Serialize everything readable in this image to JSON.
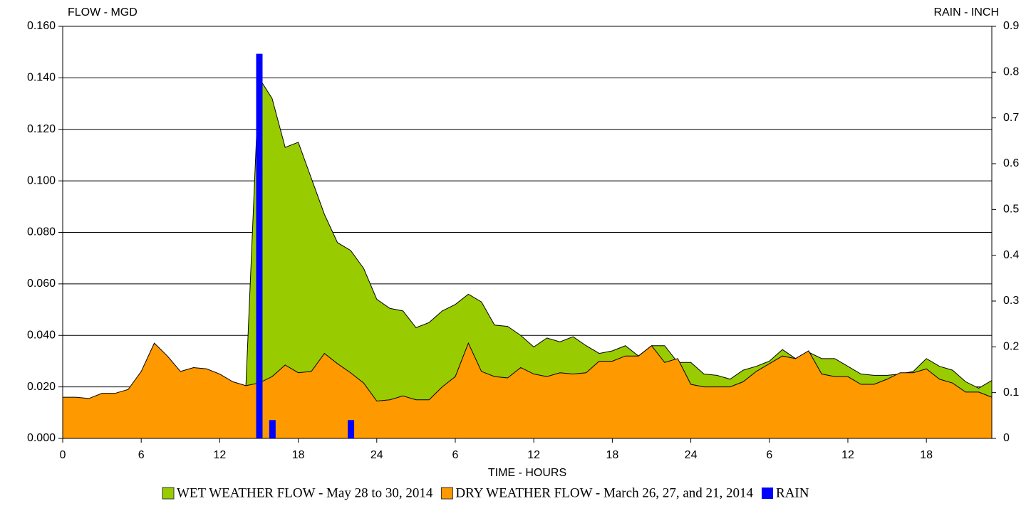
{
  "chart_data": {
    "type": "area",
    "y_label": "FLOW - MGD",
    "y2_label": "RAIN - INCH",
    "x_label": "TIME - HOURS",
    "x": [
      0,
      1,
      2,
      3,
      4,
      5,
      6,
      7,
      8,
      9,
      10,
      11,
      12,
      13,
      14,
      15,
      16,
      17,
      18,
      19,
      20,
      21,
      22,
      23,
      24,
      25,
      26,
      27,
      28,
      29,
      30,
      31,
      32,
      33,
      34,
      35,
      36,
      37,
      38,
      39,
      40,
      41,
      42,
      43,
      44,
      45,
      46,
      47,
      48,
      49,
      50,
      51,
      52,
      53,
      54,
      55,
      56,
      57,
      58,
      59,
      60,
      61,
      62,
      63,
      64,
      65,
      66,
      67,
      68,
      69,
      70,
      71
    ],
    "series": [
      {
        "name": "WET WEATHER FLOW - May 28 to 30, 2014",
        "color": "#99cc00",
        "values": [
          null,
          null,
          null,
          null,
          null,
          null,
          null,
          null,
          null,
          null,
          null,
          null,
          null,
          null,
          0.0205,
          0.14,
          0.132,
          0.113,
          0.115,
          0.101,
          0.087,
          0.076,
          0.073,
          0.066,
          0.054,
          0.0505,
          0.0495,
          0.043,
          0.045,
          0.0495,
          0.052,
          0.056,
          0.053,
          0.044,
          0.0435,
          0.04,
          0.0355,
          0.039,
          0.0375,
          0.0395,
          0.036,
          0.033,
          0.034,
          0.036,
          0.032,
          0.036,
          0.036,
          0.0295,
          0.0295,
          0.025,
          0.0245,
          0.023,
          0.0265,
          0.028,
          0.03,
          0.0345,
          0.031,
          0.0335,
          0.031,
          0.031,
          0.028,
          0.025,
          0.0245,
          0.0245,
          0.025,
          0.026,
          0.031,
          0.028,
          0.0265,
          0.022,
          0.0195,
          0.0225
        ]
      },
      {
        "name": "DRY WEATHER FLOW - March 26, 27, and 21, 2014",
        "color": "#ff9900",
        "values": [
          0.016,
          0.016,
          0.0155,
          0.0175,
          0.0175,
          0.019,
          0.026,
          0.037,
          0.032,
          0.026,
          0.0275,
          0.027,
          0.025,
          0.022,
          0.0205,
          0.0215,
          0.024,
          0.0285,
          0.0255,
          0.026,
          0.033,
          0.029,
          0.0255,
          0.0215,
          0.0145,
          0.015,
          0.0165,
          0.015,
          0.015,
          0.02,
          0.024,
          0.037,
          0.026,
          0.024,
          0.0235,
          0.0275,
          0.025,
          0.024,
          0.0255,
          0.025,
          0.0255,
          0.03,
          0.03,
          0.032,
          0.032,
          0.036,
          0.0295,
          0.031,
          0.021,
          0.02,
          0.02,
          0.02,
          0.022,
          0.026,
          0.029,
          0.032,
          0.031,
          0.034,
          0.025,
          0.024,
          0.024,
          0.021,
          0.021,
          0.023,
          0.0255,
          0.0255,
          0.027,
          0.023,
          0.0215,
          0.018,
          0.018,
          0.016
        ]
      },
      {
        "name": "RAIN",
        "color": "#0000ff",
        "axis": "y2",
        "type": "bar",
        "x": [
          15,
          16,
          22
        ],
        "values": [
          0.84,
          0.04,
          0.04
        ]
      }
    ],
    "xlim": [
      0,
      71
    ],
    "xticks": [
      0,
      6,
      12,
      18,
      24,
      {
        "value": 30,
        "label": "6"
      },
      {
        "value": 36,
        "label": "12"
      },
      {
        "value": 42,
        "label": "18"
      },
      {
        "value": 48,
        "label": "24"
      },
      {
        "value": 54,
        "label": "6"
      },
      {
        "value": 60,
        "label": "12"
      },
      {
        "value": 66,
        "label": "18"
      }
    ],
    "ylim": [
      0,
      0.16
    ],
    "yticks": [
      {
        "value": 0,
        "label": "0.000"
      },
      {
        "value": 0.02,
        "label": "0.020"
      },
      {
        "value": 0.04,
        "label": "0.040"
      },
      {
        "value": 0.06,
        "label": "0.060"
      },
      {
        "value": 0.08,
        "label": "0.080"
      },
      {
        "value": 0.1,
        "label": "0.100"
      },
      {
        "value": 0.12,
        "label": "0.120"
      },
      {
        "value": 0.14,
        "label": "0.140"
      },
      {
        "value": 0.16,
        "label": "0.160"
      }
    ],
    "y2lim": [
      0,
      0.9
    ],
    "y2ticks": [
      0,
      0.1,
      0.2,
      0.3,
      0.4,
      0.5,
      0.6,
      0.7,
      0.8,
      0.9
    ],
    "grid": true,
    "legend": "bottom"
  }
}
